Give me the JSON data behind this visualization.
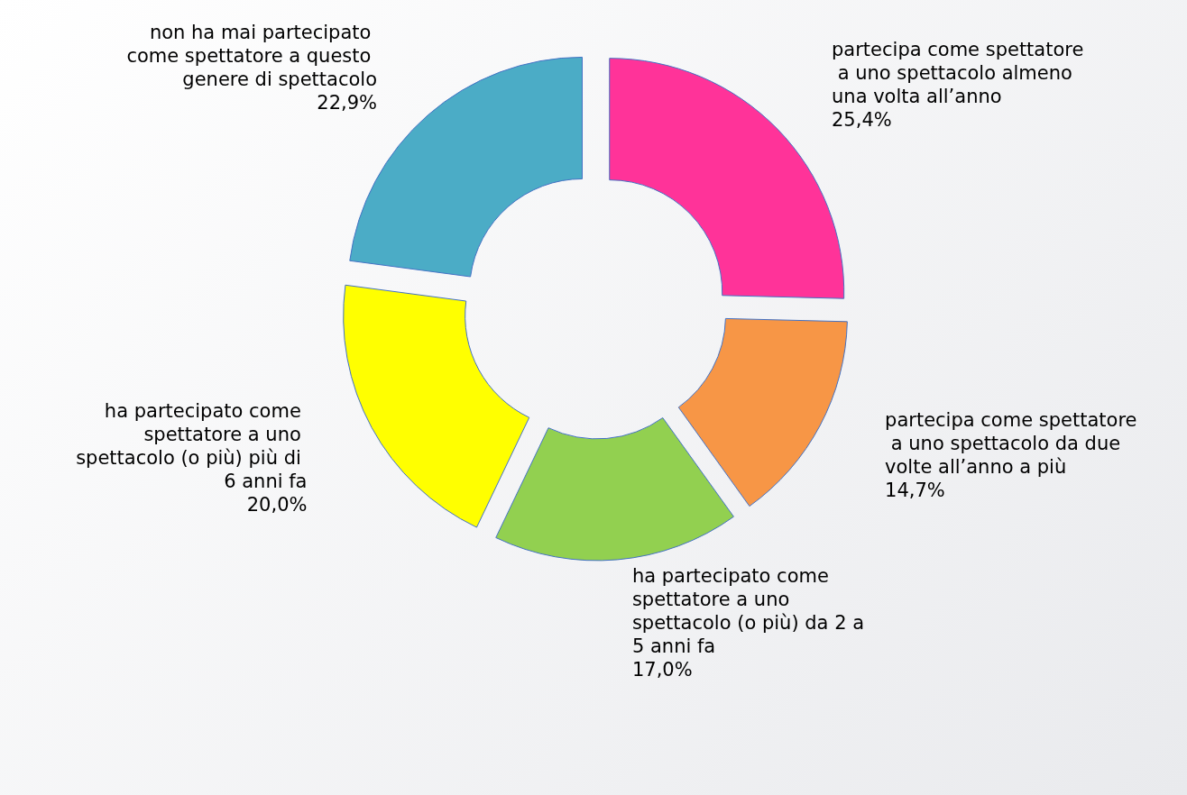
{
  "chart_data": {
    "type": "donut",
    "categories": [
      "partecipa come spettatore a uno spettacolo almeno una volta all’anno",
      "partecipa come spettatore a uno spettacolo da due volte all’anno a più",
      "ha partecipato come spettatore a uno spettacolo (o più) da 2 a 5 anni fa",
      "ha partecipato come spettatore a uno spettacolo (o più) più di 6 anni fa",
      "non ha mai partecipato come spettatore a questo genere di spettacolo"
    ],
    "values": [
      25.4,
      14.7,
      17.0,
      20.0,
      22.9
    ],
    "value_labels": [
      "25,4%",
      "14,7%",
      "17,0%",
      "20,0%",
      "22,9%"
    ],
    "colors": [
      "#ff3399",
      "#f79646",
      "#92d050",
      "#ffff00",
      "#4bacc6"
    ],
    "legend": false
  }
}
